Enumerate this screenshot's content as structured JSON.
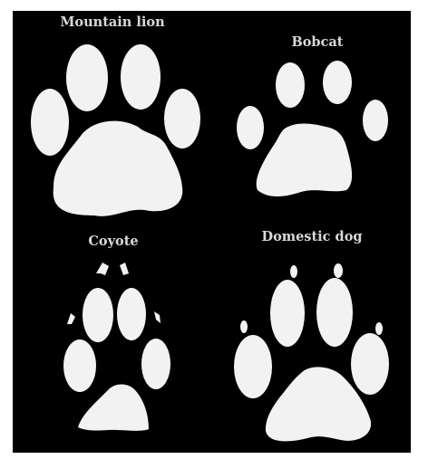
{
  "tracks": [
    {
      "label": "Mountain lion"
    },
    {
      "label": "Bobcat"
    },
    {
      "label": "Coyote"
    },
    {
      "label": "Domestic dog"
    }
  ],
  "colors": {
    "background": "#000000",
    "track": "#f2f2f2",
    "label": "#d8d8d8"
  }
}
